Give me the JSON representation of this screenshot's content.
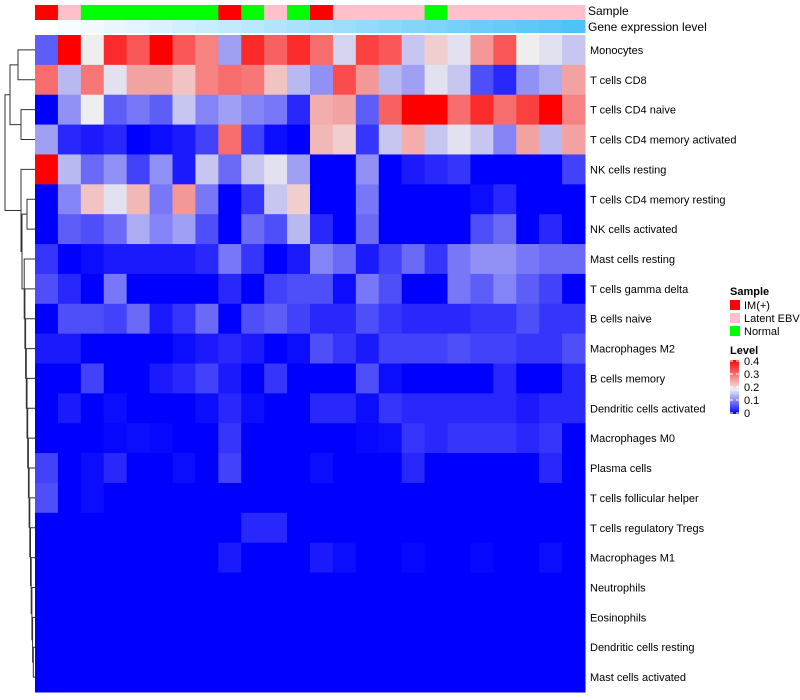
{
  "chart_data": {
    "type": "heatmap",
    "annotation_labels": {
      "sample": "Sample",
      "gene": "Gene expression level"
    },
    "legend": {
      "sample_title": "Sample",
      "sample_entries": [
        {
          "label": "IM(+)",
          "color": "#ff0000"
        },
        {
          "label": "Latent EBV",
          "color": "#ffc0cb"
        },
        {
          "label": "Normal",
          "color": "#00ff00"
        }
      ],
      "level_title": "Level",
      "level_ticks": [
        "0.4",
        "0.3",
        "0.2",
        "0.1",
        "0"
      ],
      "level_range": [
        0,
        0.4
      ],
      "colors": {
        "low": "#0000ff",
        "mid": "#eeeeee",
        "high": "#ff0000"
      }
    },
    "columns_sample": [
      "IM(+)",
      "Latent EBV",
      "Normal",
      "Normal",
      "Normal",
      "Normal",
      "Normal",
      "Normal",
      "IM(+)",
      "Normal",
      "Latent EBV",
      "Normal",
      "IM(+)",
      "Latent EBV",
      "Latent EBV",
      "Latent EBV",
      "Latent EBV",
      "Normal",
      "Latent EBV",
      "Latent EBV",
      "Latent EBV",
      "Latent EBV",
      "Latent EBV",
      "Latent EBV"
    ],
    "gene_expression_gradient": {
      "low": "#ffffff",
      "high": "#4fc3f7"
    },
    "rows": [
      "Monocytes",
      "T cells CD8",
      "T cells CD4 naive",
      "T cells CD4 memory activated",
      "NK cells resting",
      "T cells CD4 memory resting",
      "NK cells activated",
      "Mast cells resting",
      "T cells gamma delta",
      "B cells naive",
      "Macrophages M2",
      "B cells memory",
      "Dendritic cells activated",
      "Macrophages M0",
      "Plasma cells",
      "T cells follicular helper",
      "T cells regulatory  Tregs",
      "Macrophages M1",
      "Neutrophils",
      "Eosinophils",
      "Dendritic cells resting",
      "Mast cells activated"
    ],
    "values": [
      [
        0.07,
        0.4,
        0.18,
        0.36,
        0.32,
        0.4,
        0.32,
        0.28,
        0.12,
        0.36,
        0.31,
        0.36,
        0.3,
        0.16,
        0.34,
        0.32,
        0.15,
        0.21,
        0.17,
        0.26,
        0.32,
        0.18,
        0.17,
        0.15
      ],
      [
        0.3,
        0.14,
        0.29,
        0.17,
        0.25,
        0.25,
        0.22,
        0.28,
        0.3,
        0.29,
        0.22,
        0.14,
        0.11,
        0.33,
        0.26,
        0.14,
        0.12,
        0.17,
        0.15,
        0.06,
        0.03,
        0.11,
        0.13,
        0.25
      ],
      [
        0,
        0.11,
        0.18,
        0.07,
        0.09,
        0.07,
        0.15,
        0.1,
        0.12,
        0.1,
        0.09,
        0.03,
        0.24,
        0.25,
        0.07,
        0.31,
        0.4,
        0.4,
        0.3,
        0.36,
        0.3,
        0.34,
        0.4,
        0.28
      ],
      [
        0.12,
        0.03,
        0.02,
        0.03,
        0,
        0.01,
        0.02,
        0.05,
        0.3,
        0.05,
        0.01,
        0,
        0.23,
        0.21,
        0.04,
        0.15,
        0.24,
        0.15,
        0.17,
        0.15,
        0.1,
        0.25,
        0.14,
        0.25
      ],
      [
        0.4,
        0.14,
        0.08,
        0.11,
        0.05,
        0.11,
        0.02,
        0.15,
        0.08,
        0.15,
        0.17,
        0.12,
        0,
        0,
        0.11,
        0,
        0.02,
        0.03,
        0.04,
        0,
        0,
        0,
        0,
        0.05
      ],
      [
        0,
        0.1,
        0.22,
        0.17,
        0.23,
        0.09,
        0.26,
        0.09,
        0,
        0.04,
        0.15,
        0.21,
        0,
        0,
        0.09,
        0,
        0,
        0,
        0,
        0.01,
        0.03,
        0,
        0,
        0
      ],
      [
        0,
        0.07,
        0.06,
        0.08,
        0.13,
        0.1,
        0.12,
        0.06,
        0,
        0.08,
        0.06,
        0.14,
        0.03,
        0,
        0.08,
        0,
        0,
        0,
        0,
        0.06,
        0.08,
        0,
        0.03,
        0
      ],
      [
        0.04,
        0,
        0.01,
        0.02,
        0.02,
        0.02,
        0.02,
        0.03,
        0.09,
        0.04,
        0,
        0.02,
        0.1,
        0.08,
        0.02,
        0.05,
        0.08,
        0.04,
        0.09,
        0.11,
        0.11,
        0.09,
        0.08,
        0.08
      ],
      [
        0.06,
        0.03,
        0,
        0.09,
        0,
        0,
        0,
        0,
        0.03,
        0,
        0.05,
        0.06,
        0.06,
        0.01,
        0.09,
        0.06,
        0,
        0,
        0.09,
        0.07,
        0.1,
        0.07,
        0.05,
        0
      ],
      [
        0,
        0.06,
        0.06,
        0.05,
        0.08,
        0.02,
        0.04,
        0.08,
        0,
        0.06,
        0.07,
        0.05,
        0.03,
        0.03,
        0.06,
        0.04,
        0.03,
        0.03,
        0.03,
        0.04,
        0.04,
        0.06,
        0.04,
        0.04
      ],
      [
        0.02,
        0.02,
        0,
        0,
        0,
        0,
        0.01,
        0.02,
        0.03,
        0.02,
        0,
        0.01,
        0.06,
        0.04,
        0.02,
        0.05,
        0.05,
        0.05,
        0.06,
        0.05,
        0.05,
        0.04,
        0.04,
        0.06
      ],
      [
        0,
        0,
        0.05,
        0,
        0,
        0.02,
        0.03,
        0.05,
        0.02,
        0,
        0.04,
        0,
        0,
        0,
        0.06,
        0.01,
        0,
        0,
        0,
        0,
        0.03,
        0,
        0,
        0.03
      ],
      [
        0,
        0.02,
        0,
        0.01,
        0,
        0,
        0,
        0.01,
        0.03,
        0.01,
        0,
        0,
        0.03,
        0.03,
        0.01,
        0.04,
        0.03,
        0.03,
        0.03,
        0.03,
        0.03,
        0.02,
        0.03,
        0.03
      ],
      [
        0,
        0,
        0,
        0.005,
        0.01,
        0.005,
        0,
        0,
        0.04,
        0,
        0,
        0,
        0,
        0,
        0.005,
        0.01,
        0.04,
        0.03,
        0.04,
        0.04,
        0.04,
        0.03,
        0.04,
        0
      ],
      [
        0.05,
        0,
        0.01,
        0.03,
        0,
        0,
        0.01,
        0,
        0.05,
        0,
        0,
        0,
        0.01,
        0,
        0,
        0,
        0.03,
        0,
        0,
        0,
        0,
        0,
        0.03,
        0
      ],
      [
        0.06,
        0,
        0.01,
        0,
        0,
        0,
        0,
        0,
        0,
        0,
        0,
        0,
        0,
        0,
        0,
        0,
        0,
        0,
        0,
        0,
        0,
        0,
        0,
        0
      ],
      [
        0,
        0,
        0,
        0,
        0,
        0,
        0,
        0,
        0,
        0.03,
        0.03,
        0,
        0,
        0,
        0,
        0,
        0,
        0,
        0,
        0,
        0,
        0,
        0,
        0
      ],
      [
        0,
        0,
        0,
        0,
        0,
        0,
        0,
        0,
        0.02,
        0,
        0,
        0,
        0.02,
        0.01,
        0,
        0,
        0.005,
        0,
        0,
        0.005,
        0,
        0,
        0.01,
        0
      ],
      [
        0,
        0,
        0,
        0,
        0,
        0,
        0,
        0,
        0,
        0,
        0,
        0,
        0,
        0,
        0,
        0,
        0,
        0,
        0,
        0,
        0,
        0,
        0,
        0
      ],
      [
        0,
        0,
        0,
        0,
        0,
        0,
        0,
        0,
        0,
        0,
        0,
        0,
        0,
        0,
        0,
        0,
        0,
        0,
        0,
        0,
        0,
        0,
        0,
        0
      ],
      [
        0,
        0,
        0,
        0,
        0,
        0,
        0,
        0,
        0,
        0,
        0,
        0,
        0,
        0,
        0,
        0,
        0,
        0,
        0,
        0,
        0,
        0,
        0,
        0
      ],
      [
        0,
        0,
        0,
        0,
        0,
        0,
        0,
        0,
        0,
        0,
        0,
        0,
        0,
        0,
        0,
        0,
        0,
        0,
        0,
        0,
        0,
        0,
        0,
        0
      ]
    ]
  }
}
